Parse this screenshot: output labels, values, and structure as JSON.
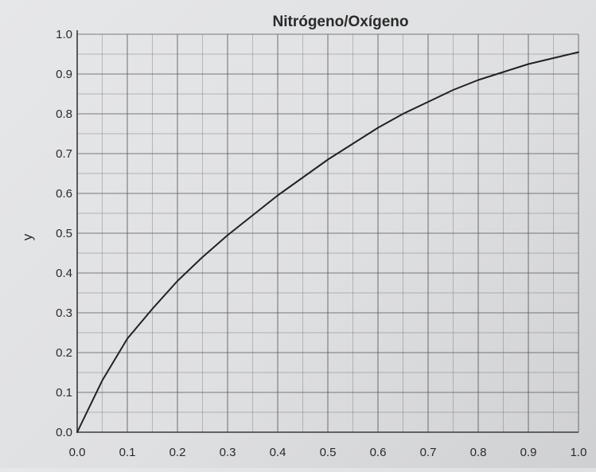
{
  "chart_data": {
    "type": "line",
    "title": "Nitrógeno/Oxígeno",
    "xlabel": "",
    "ylabel": "y",
    "xlim": [
      0.0,
      1.0
    ],
    "ylim": [
      0.0,
      1.0
    ],
    "x_ticks": [
      "0.0",
      "0.1",
      "0.2",
      "0.3",
      "0.4",
      "0.5",
      "0.6",
      "0.7",
      "0.8",
      "0.9",
      "1.0"
    ],
    "y_ticks": [
      "0.0",
      "0.1",
      "0.2",
      "0.3",
      "0.4",
      "0.5",
      "0.6",
      "0.7",
      "0.8",
      "0.9",
      "1.0"
    ],
    "grid": true,
    "series": [
      {
        "x": [
          0.0,
          0.05,
          0.1,
          0.15,
          0.2,
          0.25,
          0.3,
          0.35,
          0.4,
          0.45,
          0.5,
          0.55,
          0.6,
          0.65,
          0.7,
          0.75,
          0.8,
          0.85,
          0.9,
          0.95,
          1.0
        ],
        "y": [
          0.0,
          0.13,
          0.235,
          0.31,
          0.38,
          0.44,
          0.495,
          0.545,
          0.595,
          0.64,
          0.685,
          0.725,
          0.765,
          0.8,
          0.83,
          0.86,
          0.885,
          0.905,
          0.925,
          0.94,
          0.955
        ]
      }
    ],
    "colors": {
      "line": "#222222",
      "grid": "#555555",
      "axis": "#3a3a3a",
      "text": "#2a2a2a"
    }
  }
}
